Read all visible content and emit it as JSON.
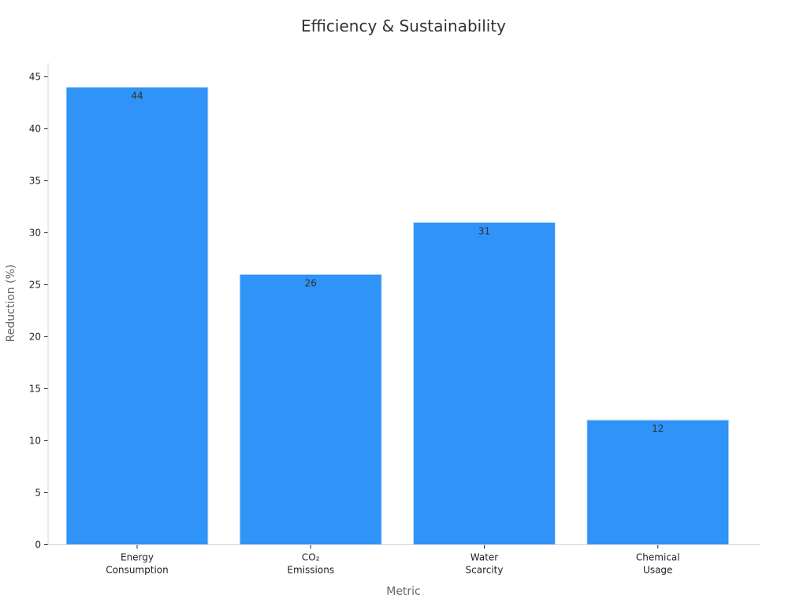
{
  "chart_data": {
    "type": "bar",
    "title": "Efficiency & Sustainability",
    "xlabel": "Metric",
    "ylabel": "Reduction (%)",
    "categories": [
      [
        "Energy",
        "Consumption"
      ],
      [
        "CO₂",
        "Emissions"
      ],
      [
        "Water",
        "Scarcity"
      ],
      [
        "Chemical",
        "Usage"
      ]
    ],
    "values": [
      44,
      26,
      31,
      12
    ],
    "data_labels": [
      "44",
      "26",
      "31",
      "12"
    ],
    "ylim": [
      0,
      45
    ],
    "yticks": [
      0,
      5,
      10,
      15,
      20,
      25,
      30,
      35,
      40,
      45
    ],
    "bar_color": "#2f93f7",
    "bar_edge_color": "#cfe4f8",
    "grid": false,
    "legend": "none"
  }
}
